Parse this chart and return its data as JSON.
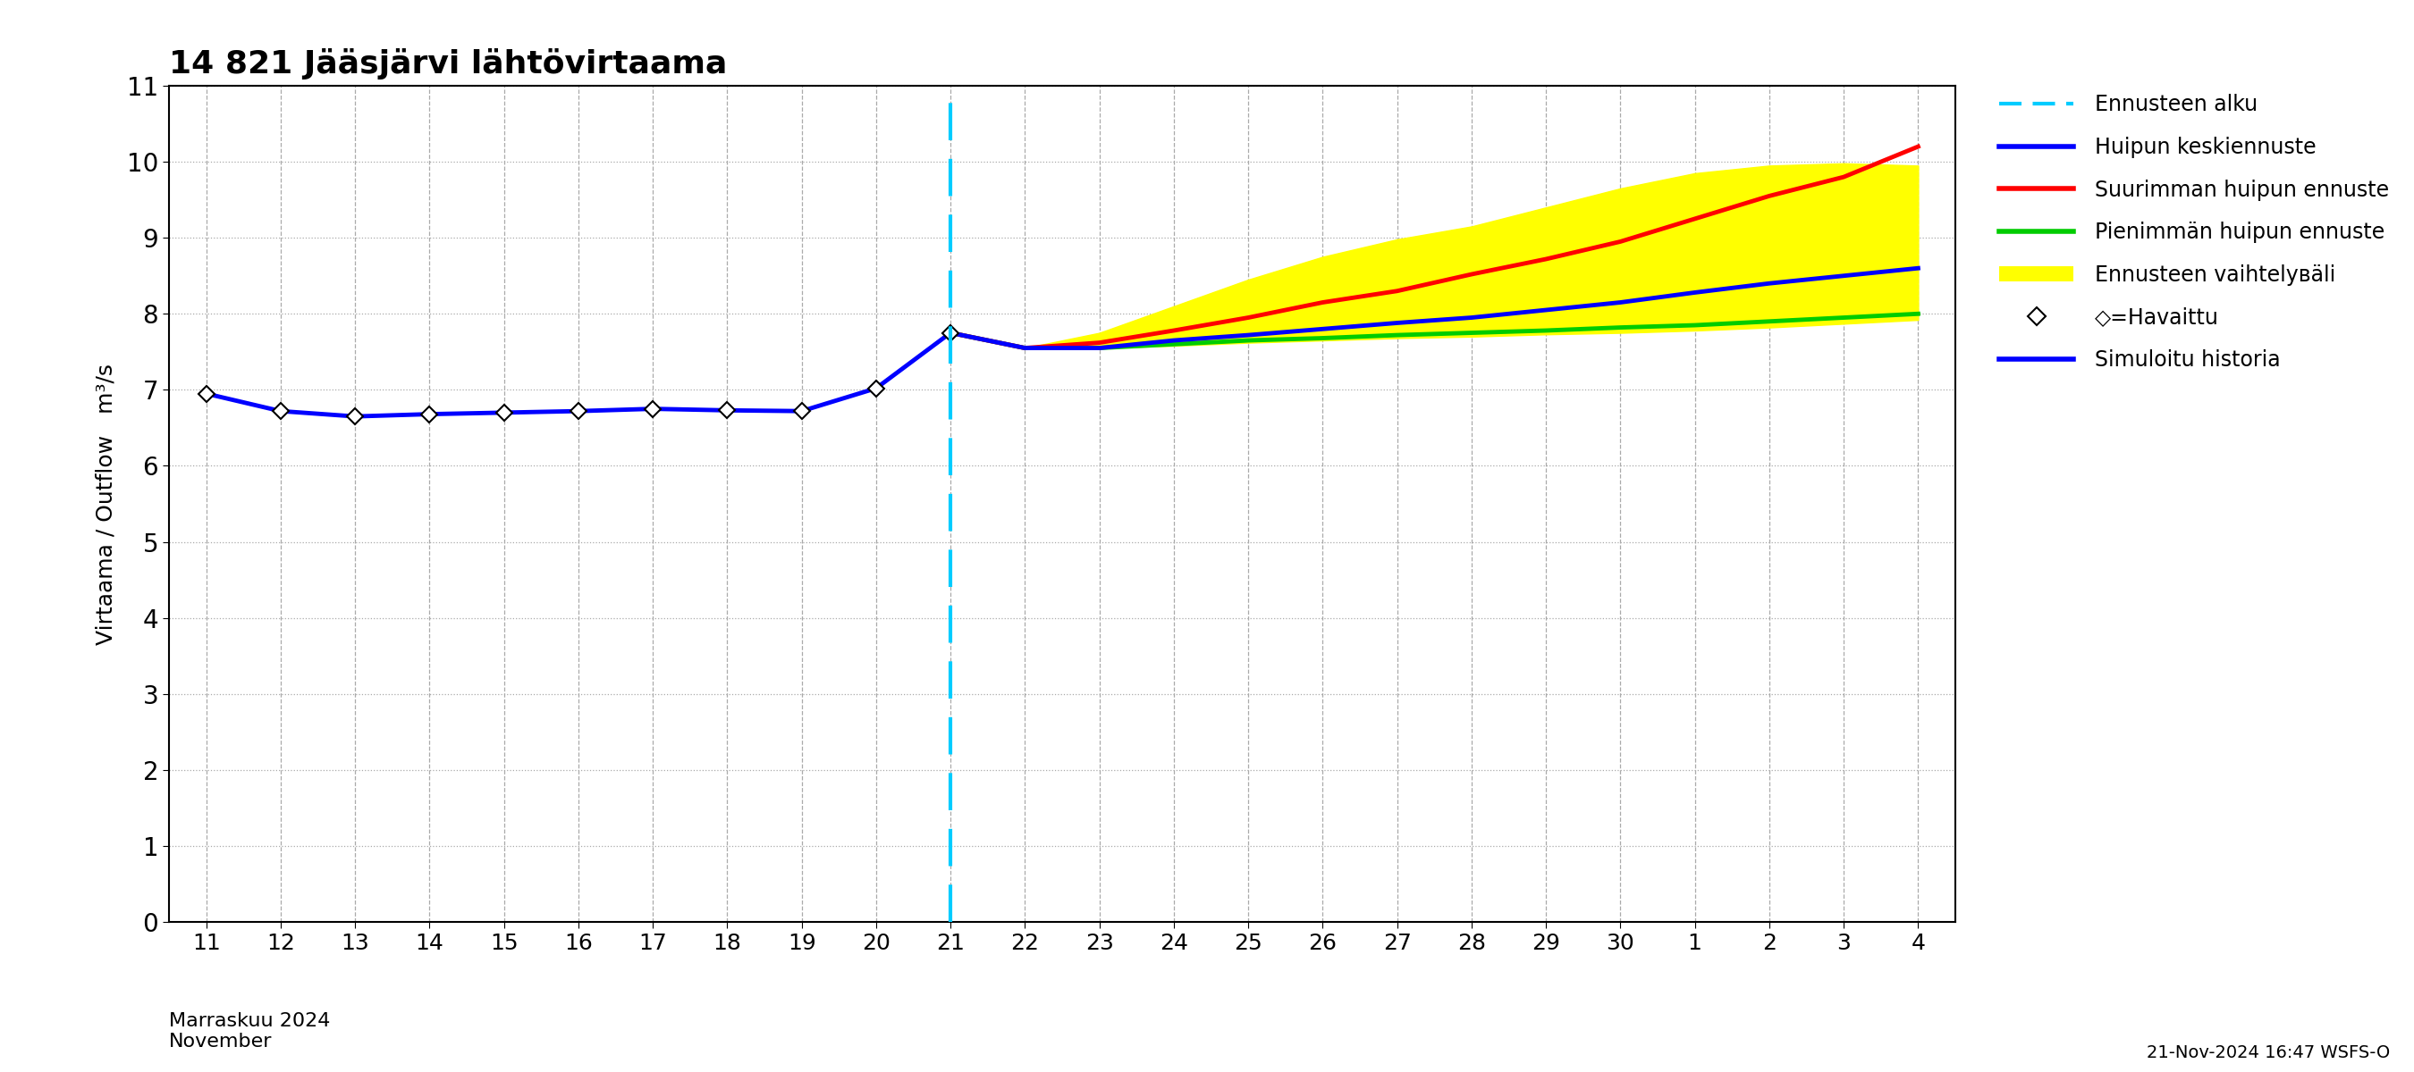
{
  "title": "14 821 Jääsjärvi lähtövirtaama",
  "ylabel": "Virtaama / Outflow   m³/s",
  "ylim": [
    0,
    11
  ],
  "yticks": [
    0,
    1,
    2,
    3,
    4,
    5,
    6,
    7,
    8,
    9,
    10,
    11
  ],
  "xlabel_bottom": "Marraskuu 2024\nNovember",
  "timestamp_label": "21-Nov-2024 16:47 WSFS-O",
  "forecast_start_x": 21,
  "xtick_labels": [
    "11",
    "12",
    "13",
    "14",
    "15",
    "16",
    "17",
    "18",
    "19",
    "20",
    "21",
    "22",
    "23",
    "24",
    "25",
    "26",
    "27",
    "28",
    "29",
    "30",
    "1",
    "2",
    "3",
    "4"
  ],
  "xtick_positions": [
    11,
    12,
    13,
    14,
    15,
    16,
    17,
    18,
    19,
    20,
    21,
    22,
    23,
    24,
    25,
    26,
    27,
    28,
    29,
    30,
    31,
    32,
    33,
    34
  ],
  "history_x": [
    11,
    12,
    13,
    14,
    15,
    16,
    17,
    18,
    19,
    20,
    21
  ],
  "history_y": [
    6.95,
    6.72,
    6.65,
    6.68,
    6.7,
    6.72,
    6.75,
    6.73,
    6.72,
    7.02,
    7.75
  ],
  "observed_x": [
    11,
    12,
    13,
    14,
    15,
    16,
    17,
    18,
    19,
    20,
    21
  ],
  "observed_y": [
    6.95,
    6.72,
    6.65,
    6.68,
    6.7,
    6.72,
    6.75,
    6.73,
    6.72,
    7.02,
    7.75
  ],
  "mean_forecast_x": [
    21,
    22,
    23,
    24,
    25,
    26,
    27,
    28,
    29,
    30,
    31,
    32,
    33,
    34
  ],
  "mean_forecast_y": [
    7.75,
    7.55,
    7.55,
    7.65,
    7.72,
    7.8,
    7.88,
    7.95,
    8.05,
    8.15,
    8.28,
    8.4,
    8.5,
    8.6
  ],
  "max_forecast_x": [
    21,
    22,
    23,
    24,
    25,
    26,
    27,
    28,
    29,
    30,
    31,
    32,
    33,
    34
  ],
  "max_forecast_y": [
    7.75,
    7.55,
    7.62,
    7.78,
    7.95,
    8.15,
    8.3,
    8.52,
    8.72,
    8.95,
    9.25,
    9.55,
    9.8,
    10.2
  ],
  "min_forecast_x": [
    21,
    22,
    23,
    24,
    25,
    26,
    27,
    28,
    29,
    30,
    31,
    32,
    33,
    34
  ],
  "min_forecast_y": [
    7.75,
    7.55,
    7.55,
    7.6,
    7.65,
    7.68,
    7.72,
    7.75,
    7.78,
    7.82,
    7.85,
    7.9,
    7.95,
    8.0
  ],
  "fill_upper_x": [
    21,
    22,
    23,
    24,
    25,
    26,
    27,
    28,
    29,
    30,
    31,
    32,
    33,
    34
  ],
  "fill_upper_y": [
    7.75,
    7.55,
    7.75,
    8.1,
    8.45,
    8.75,
    8.98,
    9.15,
    9.4,
    9.65,
    9.85,
    9.95,
    9.98,
    9.95
  ],
  "fill_lower_x": [
    21,
    22,
    23,
    24,
    25,
    26,
    27,
    28,
    29,
    30,
    31,
    32,
    33,
    34
  ],
  "fill_lower_y": [
    7.75,
    7.55,
    7.55,
    7.58,
    7.62,
    7.65,
    7.68,
    7.7,
    7.73,
    7.75,
    7.78,
    7.82,
    7.87,
    7.92
  ],
  "history_color": "#0000ff",
  "mean_forecast_color": "#0000ff",
  "max_forecast_color": "#ff0000",
  "min_forecast_color": "#00cc00",
  "fill_color": "#ffff00",
  "observed_color": "#000000",
  "forecast_vline_color": "#00ccff",
  "background_color": "#ffffff",
  "grid_color": "#aaaaaa"
}
